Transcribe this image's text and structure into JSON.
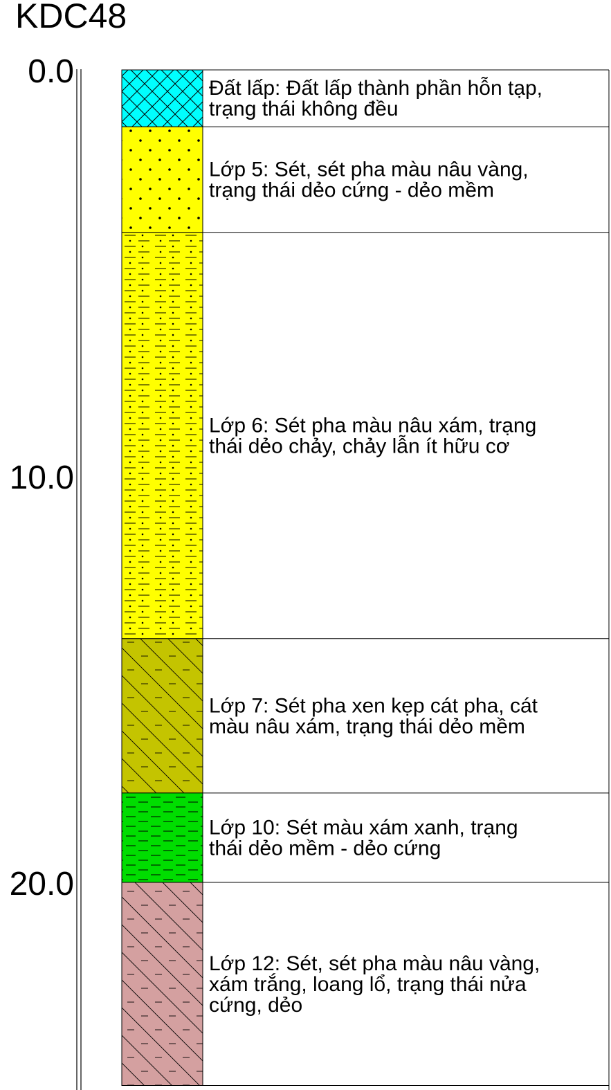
{
  "borehole": {
    "name": "KDC48"
  },
  "depth_axis": {
    "ticks": [
      {
        "value": 0,
        "label": "0.0"
      },
      {
        "value": 10,
        "label": "10.0"
      },
      {
        "value": 20,
        "label": "20.0"
      }
    ],
    "max_depth": 25
  },
  "layers": [
    {
      "top": 0.0,
      "bottom": 1.4,
      "pattern": "crosshatch",
      "color": "#00ffff",
      "lines": [
        "Đất lấp: Đất lấp thành phần hỗn tạp,",
        "trạng thái không đều"
      ]
    },
    {
      "top": 1.4,
      "bottom": 4.0,
      "pattern": "dots",
      "color": "#ffff00",
      "lines": [
        "Lớp 5: Sét, sét pha màu nâu vàng,",
        "trạng thái dẻo cứng - dẻo mềm"
      ]
    },
    {
      "top": 4.0,
      "bottom": 14.0,
      "pattern": "dash-dots",
      "color": "#ffff00",
      "lines": [
        "Lớp 6: Sét pha màu nâu xám, trạng",
        "thái dẻo chảy, chảy lẫn ít hữu cơ"
      ]
    },
    {
      "top": 14.0,
      "bottom": 17.8,
      "pattern": "dash-diagonal",
      "color": "#c4c400",
      "lines": [
        "Lớp 7: Sét pha xen kẹp cát pha, cát",
        "màu nâu xám, trạng thái dẻo mềm"
      ]
    },
    {
      "top": 17.8,
      "bottom": 20.0,
      "pattern": "dashes",
      "color": "#00dd00",
      "lines": [
        "Lớp 10: Sét màu xám xanh, trạng",
        "thái dẻo mềm - dẻo cứng"
      ]
    },
    {
      "top": 20.0,
      "bottom": 25.0,
      "pattern": "dash-diagonal",
      "color": "#d4a0a0",
      "lines": [
        "Lớp 12: Sét, sét pha màu nâu vàng,",
        "xám trắng, loang lổ, trạng thái nửa",
        "cứng, dẻo"
      ]
    }
  ]
}
